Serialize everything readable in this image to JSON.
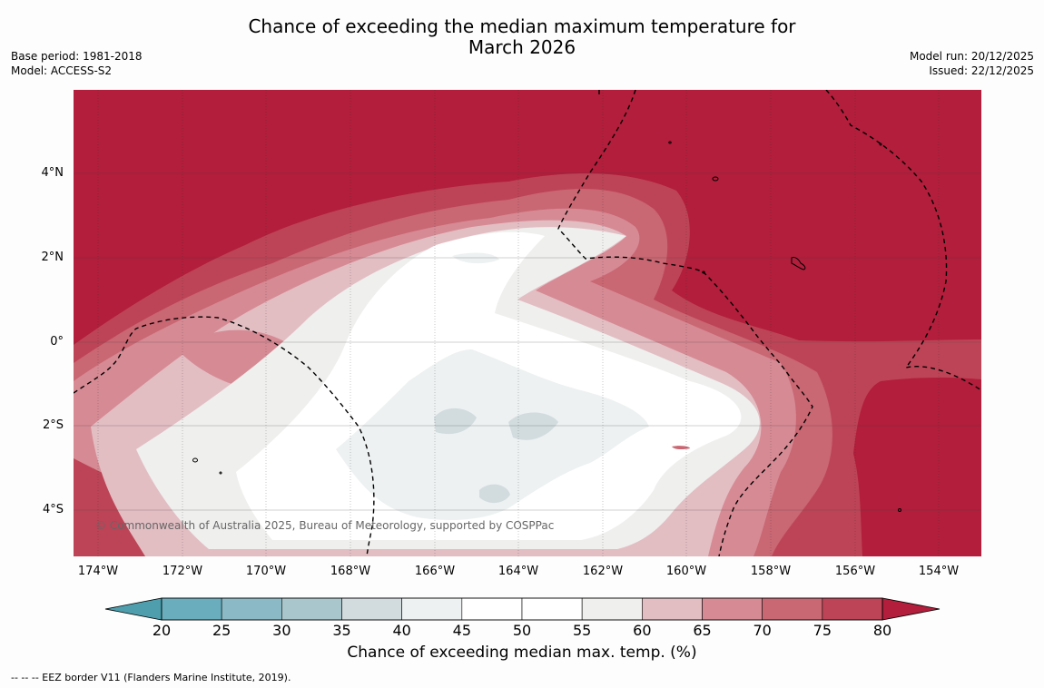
{
  "title_line1": "Chance of exceeding the median maximum temperature for",
  "title_line2": "March 2026",
  "meta_left": {
    "base_period": "Base period: 1981-2018",
    "model": "Model: ACCESS-S2"
  },
  "meta_right": {
    "model_run": "Model run: 20/12/2025",
    "issued": "Issued: 22/12/2025"
  },
  "lat_labels": [
    "4°N",
    "2°N",
    "0°",
    "2°S",
    "4°S"
  ],
  "lon_labels": [
    "174°W",
    "172°W",
    "170°W",
    "168°W",
    "166°W",
    "164°W",
    "162°W",
    "160°W",
    "158°W",
    "156°W",
    "154°W"
  ],
  "credit": "© Commonwealth of Australia 2025, Bureau of Meteorology, supported by COSPPac",
  "colorbar": {
    "ticks": [
      "20",
      "25",
      "30",
      "35",
      "40",
      "45",
      "50",
      "55",
      "60",
      "65",
      "70",
      "75",
      "80"
    ],
    "colors": [
      "#6aadbd",
      "#8bbac6",
      "#a9c6cc",
      "#d2dcdf",
      "#edf1f2",
      "#ffffff",
      "#ffffff",
      "#efefee",
      "#e2bec3",
      "#d68a94",
      "#c96773",
      "#bd4456"
    ],
    "under_color": "#4e9ead",
    "over_color": "#b21e3b",
    "label": "Chance of exceeding median max. temp. (%)"
  },
  "footer": "--  --  -- EEZ border V11 (Flanders Marine Institute, 2019)."
}
